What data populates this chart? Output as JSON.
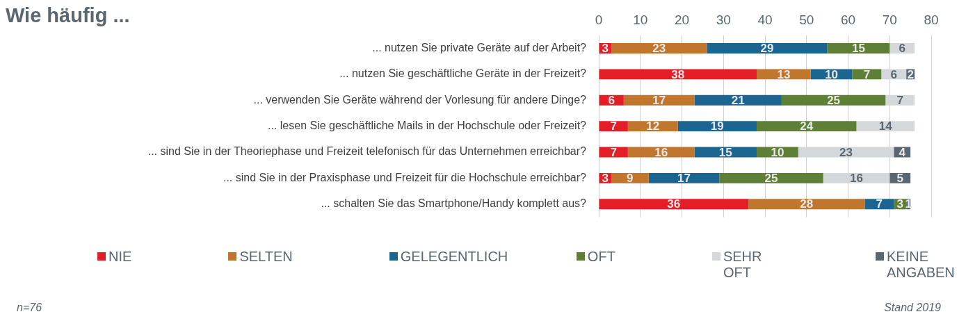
{
  "chart_data": {
    "type": "bar",
    "orientation": "horizontal",
    "stacked": true,
    "title": "Wie häufig ...",
    "categories": [
      "... nutzen Sie private Geräte auf der Arbeit?",
      "... nutzen Sie geschäftliche Geräte in der Freizeit?",
      "... verwenden Sie Geräte während der Vorlesung für andere Dinge?",
      "... lesen Sie geschäftliche Mails in der Hochschule oder Freizeit?",
      "... sind Sie in der Theoriephase und Freizeit telefonisch für das Unternehmen erreichbar?",
      "... sind Sie in der Praxisphase und Freizeit für die Hochschule erreichbar?",
      "... schalten Sie das Smartphone/Handy komplett aus?"
    ],
    "series": [
      {
        "name": "NIE",
        "color": "#e41e26",
        "values": [
          3,
          38,
          6,
          7,
          7,
          3,
          36
        ]
      },
      {
        "name": "SELTEN",
        "color": "#c0762c",
        "values": [
          23,
          13,
          17,
          12,
          16,
          9,
          28
        ]
      },
      {
        "name": "GELEGENTLICH",
        "color": "#1c6591",
        "values": [
          29,
          10,
          21,
          19,
          15,
          17,
          7
        ]
      },
      {
        "name": "OFT",
        "color": "#5e7f36",
        "values": [
          15,
          7,
          25,
          24,
          10,
          25,
          3
        ]
      },
      {
        "name": "SEHR OFT",
        "color": "#d5d8db",
        "values": [
          6,
          6,
          7,
          14,
          23,
          16,
          null
        ]
      },
      {
        "name": "KEINE ANGABEN",
        "color": "#5a6770",
        "values": [
          null,
          2,
          null,
          null,
          4,
          5,
          1
        ]
      }
    ],
    "xlim": [
      0,
      80
    ],
    "xticks": [
      0,
      10,
      20,
      30,
      40,
      50,
      60,
      70,
      80
    ],
    "grid": "x",
    "legend": "bottom",
    "data_labels": true,
    "annotations": [
      "n=76",
      "Stand 2019"
    ]
  }
}
